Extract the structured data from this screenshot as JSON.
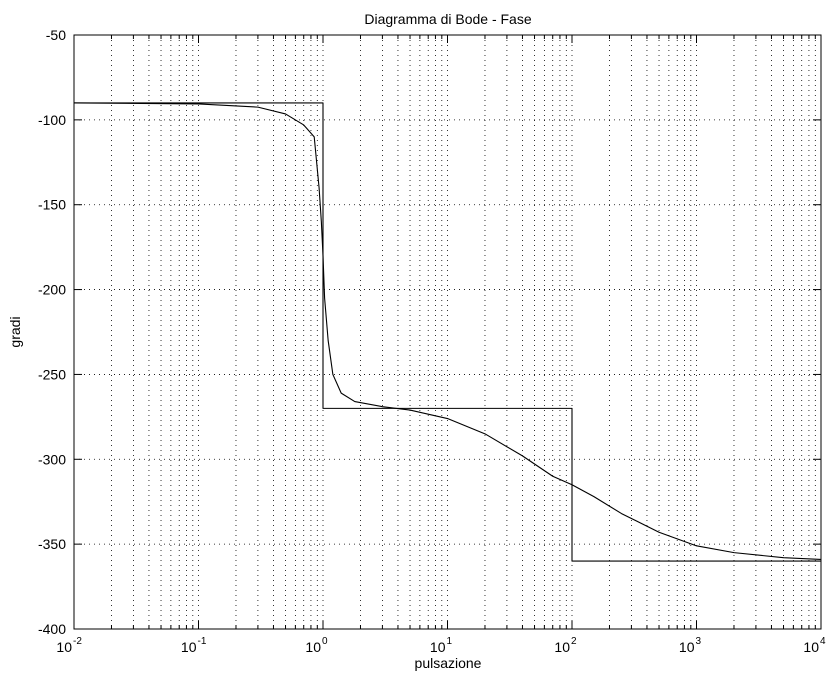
{
  "chart_data": {
    "type": "line",
    "title": "Diagramma di Bode - Fase",
    "xlabel": "pulsazione",
    "ylabel": "gradi",
    "xscale": "log",
    "xlim": [
      0.01,
      10000
    ],
    "ylim": [
      -400,
      -50
    ],
    "grid": "on (dotted, major and minor)",
    "legend": "none",
    "x_ticks": [
      {
        "base": "10",
        "exp": "-2"
      },
      {
        "base": "10",
        "exp": "-1"
      },
      {
        "base": "10",
        "exp": "0"
      },
      {
        "base": "10",
        "exp": "1"
      },
      {
        "base": "10",
        "exp": "2"
      },
      {
        "base": "10",
        "exp": "3"
      },
      {
        "base": "10",
        "exp": "4"
      }
    ],
    "y_ticks": [
      "-50",
      "-100",
      "-150",
      "-200",
      "-250",
      "-300",
      "-350",
      "-400"
    ],
    "series": [
      {
        "style": "step (asymptotic approximation)",
        "points": [
          [
            0.01,
            -90
          ],
          [
            1,
            -90
          ],
          [
            1,
            -270
          ],
          [
            100,
            -270
          ],
          [
            100,
            -360
          ],
          [
            10000,
            -360
          ]
        ]
      },
      {
        "style": "smooth (exact phase)",
        "points": [
          [
            0.01,
            -90
          ],
          [
            0.1,
            -90.6
          ],
          [
            0.3,
            -92.5
          ],
          [
            0.5,
            -96.5
          ],
          [
            0.7,
            -103
          ],
          [
            0.85,
            -110
          ],
          [
            0.93,
            -140
          ],
          [
            0.97,
            -160
          ],
          [
            1,
            -180
          ],
          [
            1.03,
            -205
          ],
          [
            1.1,
            -230
          ],
          [
            1.2,
            -250
          ],
          [
            1.4,
            -261
          ],
          [
            1.8,
            -266
          ],
          [
            3,
            -269
          ],
          [
            5,
            -271
          ],
          [
            10,
            -276
          ],
          [
            20,
            -285
          ],
          [
            40,
            -298
          ],
          [
            70,
            -310
          ],
          [
            100,
            -315
          ],
          [
            150,
            -322
          ],
          [
            250,
            -332
          ],
          [
            500,
            -343
          ],
          [
            1000,
            -351
          ],
          [
            2000,
            -355
          ],
          [
            5000,
            -358
          ],
          [
            10000,
            -359
          ]
        ]
      }
    ],
    "colors": {
      "line": "#000000",
      "grid": "#000000",
      "background": "#ffffff"
    }
  }
}
